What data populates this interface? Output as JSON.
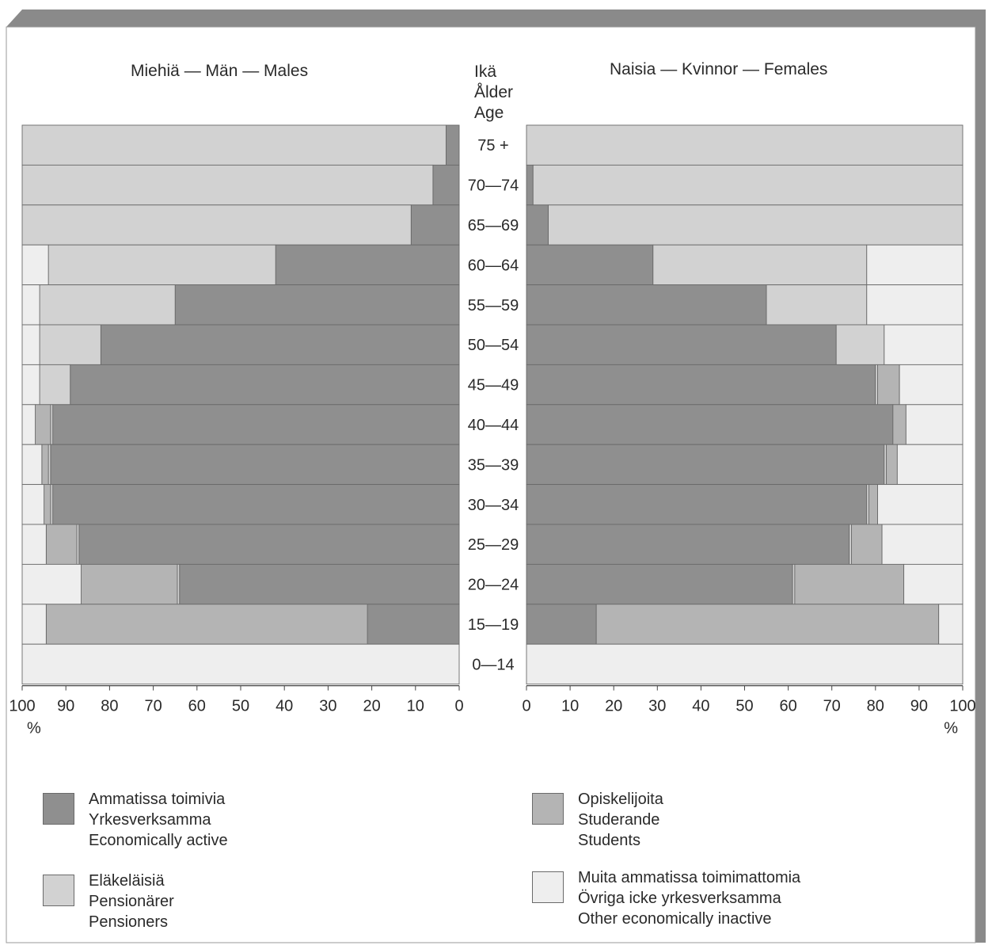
{
  "chart_data": {
    "type": "bar",
    "orientation": "horizontal",
    "stacked": true,
    "age_axis_title_lines": [
      "Ikä",
      "Ålder",
      "Age"
    ],
    "categories": [
      "75 +",
      "70—74",
      "65—69",
      "60—64",
      "55—59",
      "50—54",
      "45—49",
      "40—44",
      "35—39",
      "30—34",
      "25—29",
      "20—24",
      "15—19",
      "0—14"
    ],
    "colors": {
      "Ammatissa toimivia": "#8f8f8f",
      "Eläkeläisiä": "#d2d2d2",
      "Opiskelijoita": "#b4b4b4",
      "Muita ammatissa toimimattomia": "#eeeeee"
    },
    "charts": [
      {
        "title": "Miehiä — Män — Males",
        "direction": "right-to-left",
        "xlim": [
          0,
          100
        ],
        "ticks": [
          100,
          90,
          80,
          70,
          60,
          50,
          40,
          30,
          20,
          10,
          0
        ],
        "unit_label": "%",
        "series": [
          {
            "name": "Ammatissa toimivia",
            "values": [
              3,
              6,
              11,
              42,
              65,
              82,
              89,
              93,
              93.5,
              93,
              87,
              64,
              21,
              0
            ]
          },
          {
            "name": "Eläkeläisiä",
            "values": [
              97,
              94,
              89,
              52,
              31,
              14,
              7,
              0.5,
              0.5,
              0.5,
              0.5,
              0.5,
              0,
              0
            ]
          },
          {
            "name": "Opiskelijoita",
            "values": [
              0,
              0,
              0,
              0,
              0,
              0,
              0,
              3.5,
              1.5,
              1.5,
              7,
              22,
              73.5,
              0
            ]
          },
          {
            "name": "Muita ammatissa toimimattomia",
            "values": [
              0,
              0,
              0,
              6,
              4,
              4,
              4,
              3,
              4.5,
              5,
              5.5,
              13.5,
              5.5,
              100
            ]
          }
        ]
      },
      {
        "title": "Naisia — Kvinnor — Females",
        "direction": "left-to-right",
        "xlim": [
          0,
          100
        ],
        "ticks": [
          0,
          10,
          20,
          30,
          40,
          50,
          60,
          70,
          80,
          90,
          100
        ],
        "unit_label": "%",
        "series": [
          {
            "name": "Ammatissa toimivia",
            "values": [
              0,
              1.5,
              5,
              29,
              55,
              71,
              80,
              84,
              82,
              78,
              74,
              61,
              16,
              0
            ]
          },
          {
            "name": "Eläkeläisiä",
            "values": [
              100,
              98.5,
              95,
              49,
              23,
              11,
              0.5,
              0,
              0.5,
              0.5,
              0.5,
              0.5,
              0,
              0
            ]
          },
          {
            "name": "Opiskelijoita",
            "values": [
              0,
              0,
              0,
              0,
              0,
              0,
              5,
              3,
              2.5,
              2,
              7,
              25,
              78.5,
              0
            ]
          },
          {
            "name": "Muita ammatissa toimimattomia",
            "values": [
              0,
              0,
              0,
              22,
              22,
              18,
              14.5,
              13,
              15,
              19.5,
              18.5,
              13.5,
              5.5,
              100
            ]
          }
        ]
      }
    ]
  },
  "legend": [
    {
      "lines": [
        "Ammatissa toimivia",
        "Yrkesverksamma",
        "Economically active"
      ],
      "color": "#8f8f8f"
    },
    {
      "lines": [
        "Eläkeläisiä",
        "Pensionärer",
        "Pensioners"
      ],
      "color": "#d2d2d2"
    },
    {
      "lines": [
        "Opiskelijoita",
        "Studerande",
        "Students"
      ],
      "color": "#b4b4b4"
    },
    {
      "lines": [
        "Muita ammatissa toimimattomia",
        "Övriga icke yrkesverksamma",
        "Other economically inactive"
      ],
      "color": "#eeeeee"
    }
  ]
}
